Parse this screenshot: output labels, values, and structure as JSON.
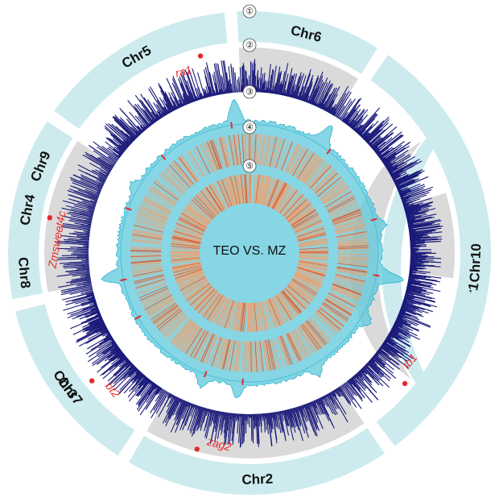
{
  "center_title": "TEO VS. MZ",
  "track_numbers": [
    "①",
    "②",
    "③",
    "④",
    "⑤"
  ],
  "chromosomes": [
    {
      "name": "Chr1",
      "start_deg": 60,
      "end_deg": 143
    },
    {
      "name": "Chr2",
      "start_deg": 146,
      "end_deg": 210
    },
    {
      "name": "Chr3",
      "start_deg": 213,
      "end_deg": 256
    },
    {
      "name": "Chr4",
      "start_deg": 259,
      "end_deg": 303
    },
    {
      "name": "Chr5",
      "start_deg": 306,
      "end_deg": 354
    },
    {
      "name": "Chr6",
      "start_deg": 357,
      "end_deg": 392
    },
    {
      "name": "Chr7",
      "start_deg": 395,
      "end_deg": 430
    },
    {
      "name": "Chr8",
      "start_deg": 433,
      "end_deg": 457
    },
    {
      "name": "Chr9",
      "start_deg": 460,
      "end_deg": 485
    },
    {
      "name": "Chr10",
      "start_deg": 488,
      "end_deg": 418
    }
  ],
  "genes": [
    {
      "name": "ra1",
      "angle_deg": 346
    },
    {
      "name": "Zmsweet4c",
      "angle_deg": 280
    },
    {
      "name": "bt2",
      "angle_deg": 231
    },
    {
      "name": "zag2",
      "angle_deg": 195
    },
    {
      "name": "tb1",
      "angle_deg": 130
    }
  ],
  "colors": {
    "ideogram": "#cdebee",
    "alt_band": "#dadada",
    "bars": "#1a1a7a",
    "density": "#5ec8dd",
    "density_line": "#2ab3c9",
    "heat": "#f2a06a",
    "gene": "#e8282b"
  }
}
